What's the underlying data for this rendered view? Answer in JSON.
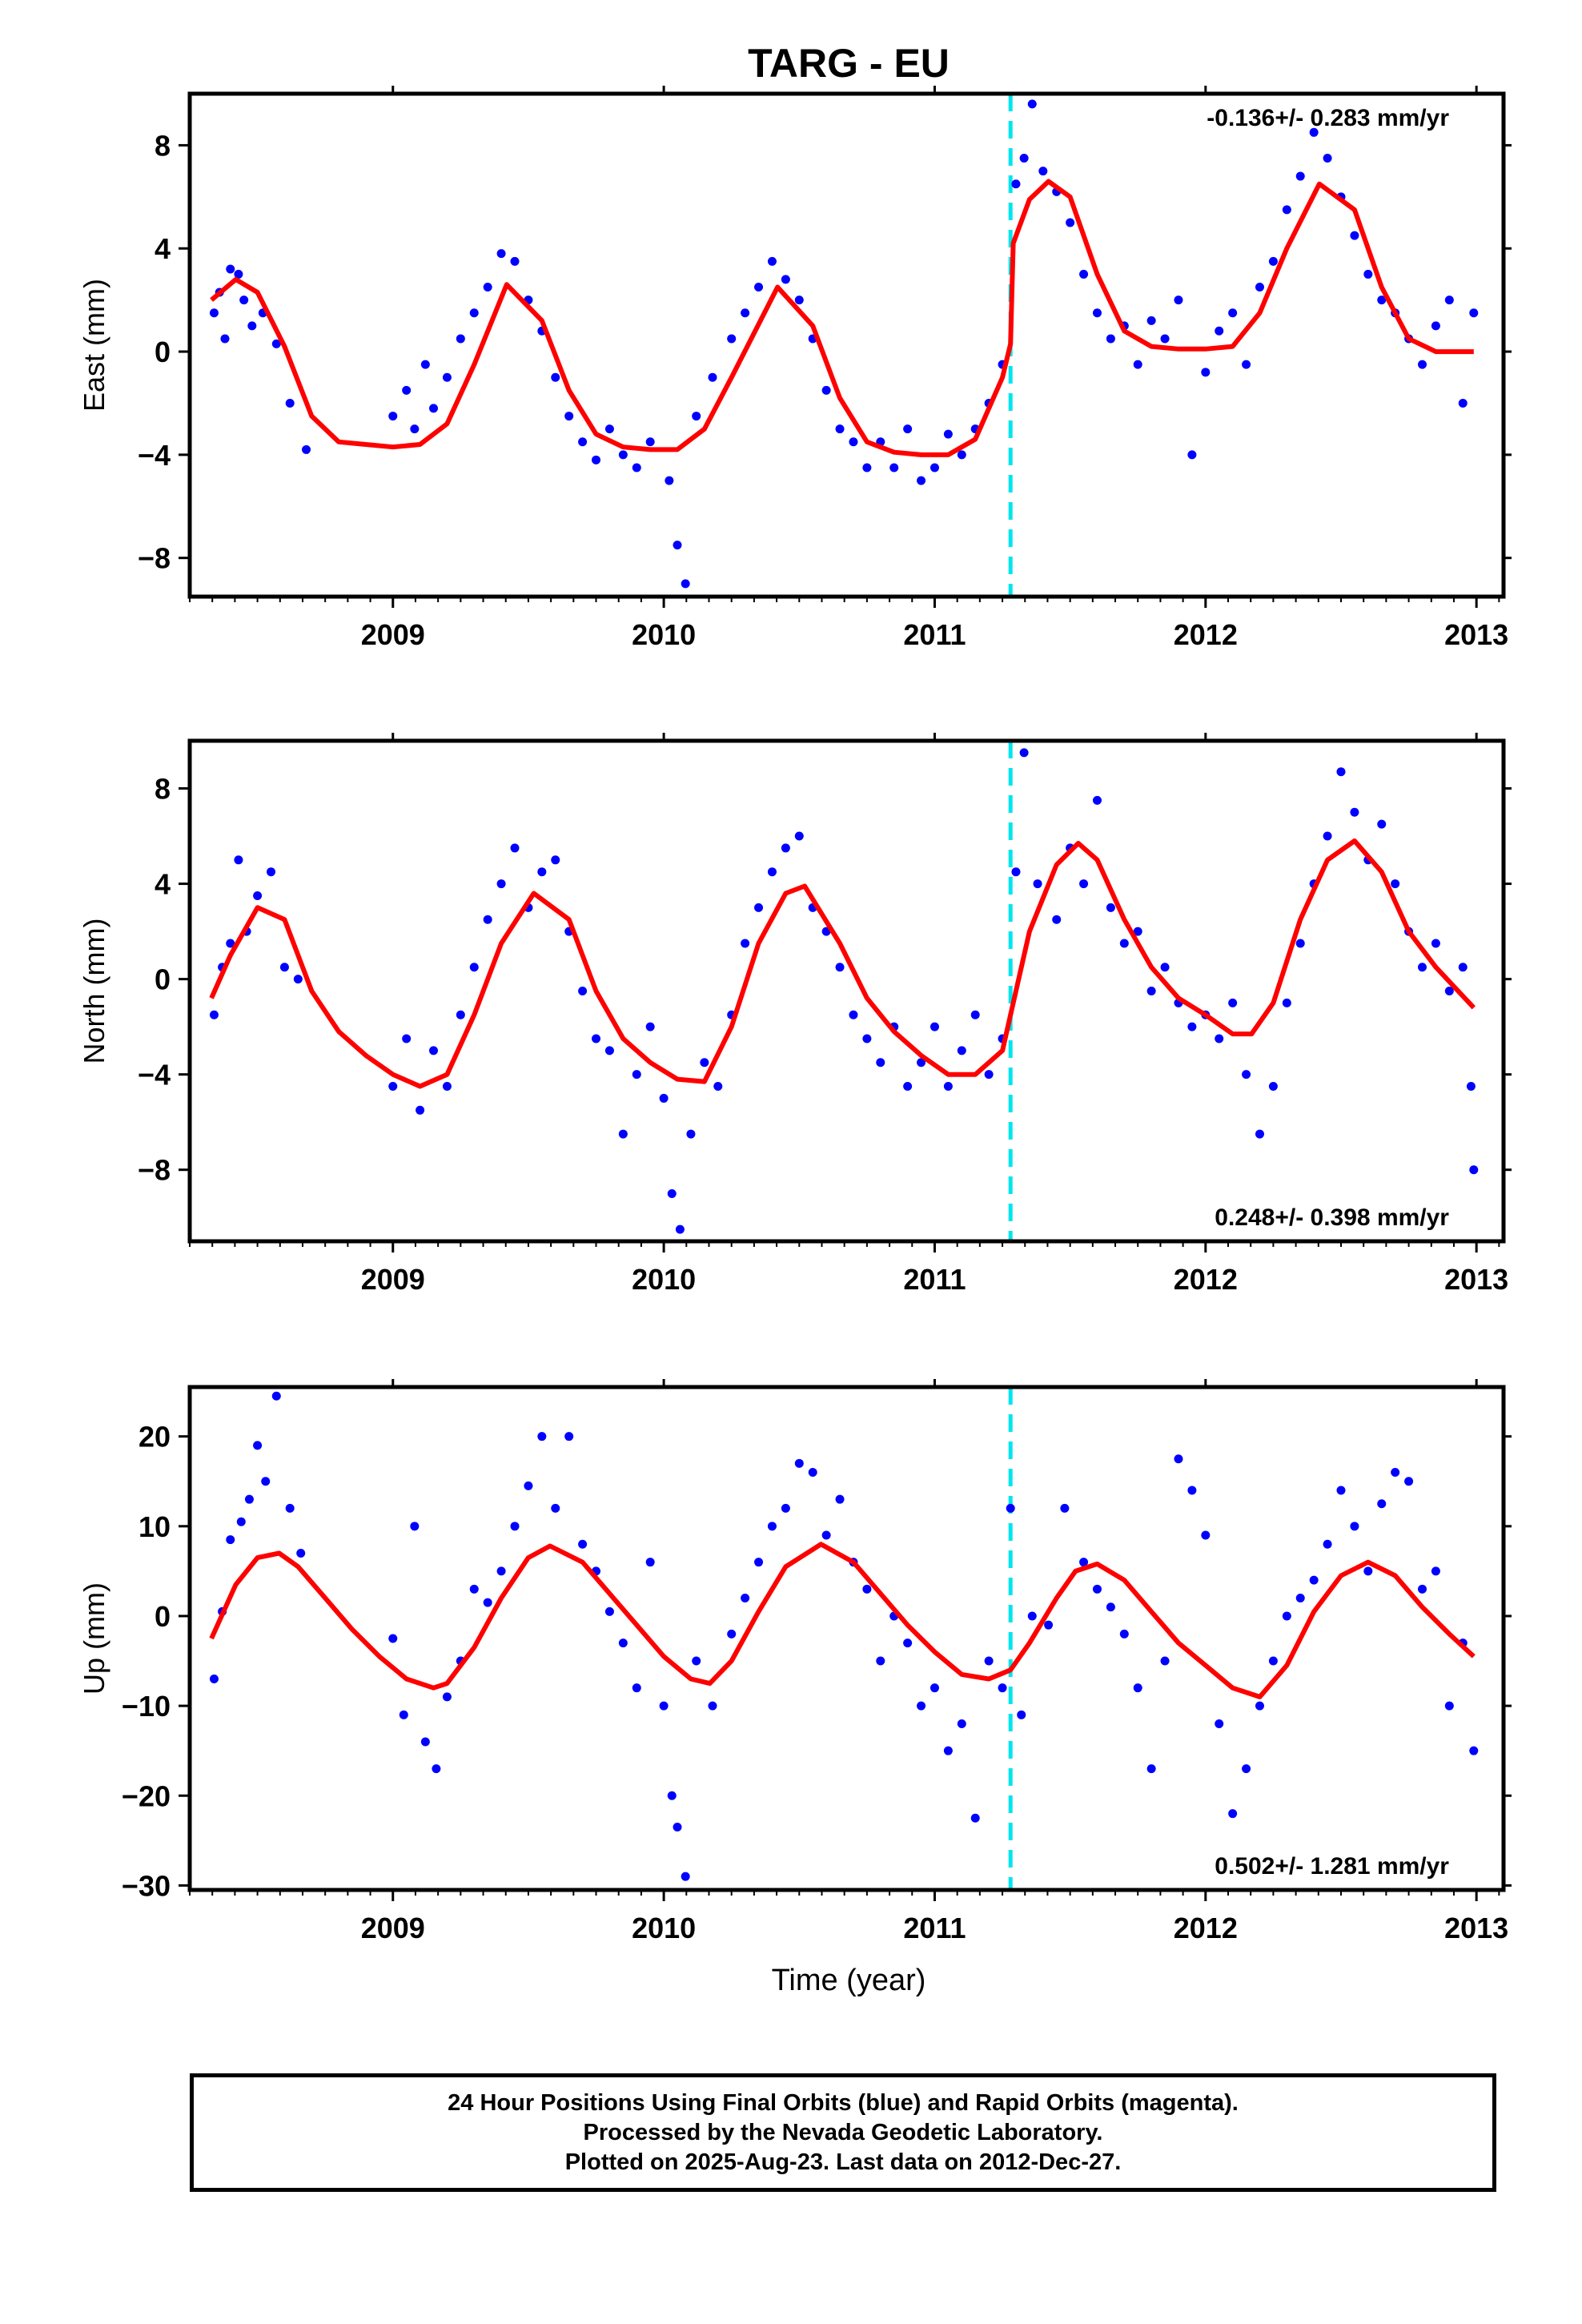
{
  "title": "TARG - EU",
  "colors": {
    "data": "#0000ff",
    "fit": "#ff0000",
    "event": "#00e5ee",
    "axis": "#000000"
  },
  "chart_data": [
    {
      "type": "scatter",
      "panel": "east",
      "ylabel": "East (mm)",
      "xlabel": "",
      "xlim": [
        2008.25,
        2013.1
      ],
      "ylim": [
        -9.5,
        10
      ],
      "x_ticks": [
        "2009",
        "2010",
        "2011",
        "2012",
        "2013"
      ],
      "y_ticks": [
        -8,
        -4,
        0,
        4,
        8
      ],
      "rate_label": "-0.136+/- 0.283 mm/yr",
      "rate_position": "top-right",
      "event_line_x": 2011.28,
      "fit_curve": {
        "name": "",
        "color": "#ff0000",
        "x": [
          2008.33,
          2008.42,
          2008.5,
          2008.6,
          2008.7,
          2008.8,
          2008.9,
          2009.0,
          2009.1,
          2009.2,
          2009.3,
          2009.42,
          2009.55,
          2009.65,
          2009.75,
          2009.85,
          2009.95,
          2010.05,
          2010.15,
          2010.25,
          2010.42,
          2010.55,
          2010.65,
          2010.75,
          2010.85,
          2010.95,
          2011.05,
          2011.15,
          2011.25,
          2011.28,
          2011.29,
          2011.35,
          2011.42,
          2011.5,
          2011.6,
          2011.7,
          2011.8,
          2011.9,
          2012.0,
          2012.1,
          2012.2,
          2012.3,
          2012.42,
          2012.55,
          2012.65,
          2012.75,
          2012.85,
          2012.99
        ],
        "y": [
          2.0,
          2.8,
          2.3,
          0.2,
          -2.5,
          -3.5,
          -3.6,
          -3.7,
          -3.6,
          -2.8,
          -0.5,
          2.6,
          1.2,
          -1.5,
          -3.2,
          -3.7,
          -3.8,
          -3.8,
          -3.0,
          -1.0,
          2.5,
          1.0,
          -1.8,
          -3.5,
          -3.9,
          -4.0,
          -4.0,
          -3.4,
          -1.0,
          0.3,
          4.2,
          5.9,
          6.6,
          6.0,
          3.0,
          0.8,
          0.2,
          0.1,
          0.1,
          0.2,
          1.5,
          4.0,
          6.5,
          5.5,
          2.5,
          0.5,
          0.0,
          0.0
        ]
      },
      "series": [
        {
          "name": "",
          "color": "#0000ff",
          "x": [
            2008.34,
            2008.36,
            2008.38,
            2008.4,
            2008.43,
            2008.45,
            2008.48,
            2008.52,
            2008.57,
            2008.62,
            2008.68,
            2009.0,
            2009.05,
            2009.08,
            2009.12,
            2009.15,
            2009.2,
            2009.25,
            2009.3,
            2009.35,
            2009.4,
            2009.45,
            2009.5,
            2009.55,
            2009.6,
            2009.65,
            2009.7,
            2009.75,
            2009.8,
            2009.85,
            2009.9,
            2009.95,
            2010.02,
            2010.05,
            2010.08,
            2010.12,
            2010.18,
            2010.25,
            2010.3,
            2010.35,
            2010.4,
            2010.45,
            2010.5,
            2010.55,
            2010.6,
            2010.65,
            2010.7,
            2010.75,
            2010.8,
            2010.85,
            2010.9,
            2010.95,
            2011.0,
            2011.05,
            2011.1,
            2011.15,
            2011.2,
            2011.25,
            2011.3,
            2011.33,
            2011.36,
            2011.4,
            2011.45,
            2011.5,
            2011.55,
            2011.6,
            2011.65,
            2011.7,
            2011.75,
            2011.8,
            2011.85,
            2011.9,
            2011.95,
            2012.0,
            2012.05,
            2012.1,
            2012.15,
            2012.2,
            2012.25,
            2012.3,
            2012.35,
            2012.4,
            2012.45,
            2012.5,
            2012.55,
            2012.6,
            2012.65,
            2012.7,
            2012.75,
            2012.8,
            2012.85,
            2012.9,
            2012.95,
            2012.99
          ],
          "y": [
            1.5,
            2.3,
            0.5,
            3.2,
            3.0,
            2.0,
            1.0,
            1.5,
            0.3,
            -2.0,
            -3.8,
            -2.5,
            -1.5,
            -3.0,
            -0.5,
            -2.2,
            -1.0,
            0.5,
            1.5,
            2.5,
            3.8,
            3.5,
            2.0,
            0.8,
            -1.0,
            -2.5,
            -3.5,
            -4.2,
            -3.0,
            -4.0,
            -4.5,
            -3.5,
            -5.0,
            -7.5,
            -9.0,
            -2.5,
            -1.0,
            0.5,
            1.5,
            2.5,
            3.5,
            2.8,
            2.0,
            0.5,
            -1.5,
            -3.0,
            -3.5,
            -4.5,
            -3.5,
            -4.5,
            -3.0,
            -5.0,
            -4.5,
            -3.2,
            -4.0,
            -3.0,
            -2.0,
            -0.5,
            6.5,
            7.5,
            9.6,
            7.0,
            6.2,
            5.0,
            3.0,
            1.5,
            0.5,
            1.0,
            -0.5,
            1.2,
            0.5,
            2.0,
            -4.0,
            -0.8,
            0.8,
            1.5,
            -0.5,
            2.5,
            3.5,
            5.5,
            6.8,
            8.5,
            7.5,
            6.0,
            4.5,
            3.0,
            2.0,
            1.5,
            0.5,
            -0.5,
            1.0,
            2.0,
            -2.0,
            1.5
          ]
        }
      ]
    },
    {
      "type": "scatter",
      "panel": "north",
      "ylabel": "North (mm)",
      "xlabel": "",
      "xlim": [
        2008.25,
        2013.1
      ],
      "ylim": [
        -11,
        10
      ],
      "x_ticks": [
        "2009",
        "2010",
        "2011",
        "2012",
        "2013"
      ],
      "y_ticks": [
        -8,
        -4,
        0,
        4,
        8
      ],
      "rate_label": "0.248+/- 0.398 mm/yr",
      "rate_position": "bottom-right",
      "event_line_x": 2011.28,
      "fit_curve": {
        "name": "",
        "color": "#ff0000",
        "x": [
          2008.33,
          2008.4,
          2008.5,
          2008.6,
          2008.7,
          2008.8,
          2008.9,
          2009.0,
          2009.1,
          2009.2,
          2009.3,
          2009.4,
          2009.52,
          2009.65,
          2009.75,
          2009.85,
          2009.95,
          2010.05,
          2010.15,
          2010.25,
          2010.35,
          2010.45,
          2010.52,
          2010.65,
          2010.75,
          2010.85,
          2010.95,
          2011.05,
          2011.15,
          2011.25,
          2011.28,
          2011.35,
          2011.45,
          2011.53,
          2011.6,
          2011.7,
          2011.8,
          2011.9,
          2012.0,
          2012.1,
          2012.17,
          2012.25,
          2012.35,
          2012.45,
          2012.55,
          2012.65,
          2012.75,
          2012.85,
          2012.99
        ],
        "y": [
          -0.8,
          1.0,
          3.0,
          2.5,
          -0.5,
          -2.2,
          -3.2,
          -4.0,
          -4.5,
          -4.0,
          -1.5,
          1.5,
          3.6,
          2.5,
          -0.5,
          -2.5,
          -3.5,
          -4.2,
          -4.3,
          -2.0,
          1.5,
          3.6,
          3.9,
          1.5,
          -0.8,
          -2.2,
          -3.2,
          -4.0,
          -4.0,
          -3.0,
          -1.5,
          2.0,
          4.8,
          5.7,
          5.0,
          2.5,
          0.5,
          -0.8,
          -1.5,
          -2.3,
          -2.3,
          -1.0,
          2.5,
          5.0,
          5.8,
          4.5,
          2.0,
          0.5,
          -1.2
        ]
      },
      "series": [
        {
          "name": "",
          "color": "#0000ff",
          "x": [
            2008.34,
            2008.37,
            2008.4,
            2008.43,
            2008.46,
            2008.5,
            2008.55,
            2008.6,
            2008.65,
            2009.0,
            2009.05,
            2009.1,
            2009.15,
            2009.2,
            2009.25,
            2009.3,
            2009.35,
            2009.4,
            2009.45,
            2009.5,
            2009.55,
            2009.6,
            2009.65,
            2009.7,
            2009.75,
            2009.8,
            2009.85,
            2009.9,
            2009.95,
            2010.0,
            2010.03,
            2010.06,
            2010.1,
            2010.15,
            2010.2,
            2010.25,
            2010.3,
            2010.35,
            2010.4,
            2010.45,
            2010.5,
            2010.55,
            2010.6,
            2010.65,
            2010.7,
            2010.75,
            2010.8,
            2010.85,
            2010.9,
            2010.95,
            2011.0,
            2011.05,
            2011.1,
            2011.15,
            2011.2,
            2011.25,
            2011.3,
            2011.33,
            2011.38,
            2011.45,
            2011.5,
            2011.55,
            2011.6,
            2011.65,
            2011.7,
            2011.75,
            2011.8,
            2011.85,
            2011.9,
            2011.95,
            2012.0,
            2012.05,
            2012.1,
            2012.15,
            2012.2,
            2012.25,
            2012.3,
            2012.35,
            2012.4,
            2012.45,
            2012.5,
            2012.55,
            2012.6,
            2012.65,
            2012.7,
            2012.75,
            2012.8,
            2012.85,
            2012.9,
            2012.95,
            2012.98,
            2012.99
          ],
          "y": [
            -1.5,
            0.5,
            1.5,
            5.0,
            2.0,
            3.5,
            4.5,
            0.5,
            0.0,
            -4.5,
            -2.5,
            -5.5,
            -3.0,
            -4.5,
            -1.5,
            0.5,
            2.5,
            4.0,
            5.5,
            3.0,
            4.5,
            5.0,
            2.0,
            -0.5,
            -2.5,
            -3.0,
            -6.5,
            -4.0,
            -2.0,
            -5.0,
            -9.0,
            -10.5,
            -6.5,
            -3.5,
            -4.5,
            -1.5,
            1.5,
            3.0,
            4.5,
            5.5,
            6.0,
            3.0,
            2.0,
            0.5,
            -1.5,
            -2.5,
            -3.5,
            -2.0,
            -4.5,
            -3.5,
            -2.0,
            -4.5,
            -3.0,
            -1.5,
            -4.0,
            -2.5,
            4.5,
            9.5,
            4.0,
            2.5,
            5.5,
            4.0,
            7.5,
            3.0,
            1.5,
            2.0,
            -0.5,
            0.5,
            -1.0,
            -2.0,
            -1.5,
            -2.5,
            -1.0,
            -4.0,
            -6.5,
            -4.5,
            -1.0,
            1.5,
            4.0,
            6.0,
            8.7,
            7.0,
            5.0,
            6.5,
            4.0,
            2.0,
            0.5,
            1.5,
            -0.5,
            0.5,
            -4.5,
            -8.0
          ]
        }
      ]
    },
    {
      "type": "scatter",
      "panel": "up",
      "ylabel": "Up (mm)",
      "xlabel": "Time (year)",
      "xlim": [
        2008.25,
        2013.1
      ],
      "ylim": [
        -30.5,
        25.5
      ],
      "x_ticks": [
        "2009",
        "2010",
        "2011",
        "2012",
        "2013"
      ],
      "y_ticks": [
        -30,
        -20,
        -10,
        0,
        10,
        20
      ],
      "rate_label": "0.502+/- 1.281 mm/yr",
      "rate_position": "bottom-right",
      "event_line_x": 2011.28,
      "fit_curve": {
        "name": "",
        "color": "#ff0000",
        "x": [
          2008.33,
          2008.42,
          2008.5,
          2008.58,
          2008.65,
          2008.75,
          2008.85,
          2008.95,
          2009.05,
          2009.15,
          2009.2,
          2009.3,
          2009.4,
          2009.5,
          2009.58,
          2009.7,
          2009.8,
          2009.9,
          2010.0,
          2010.1,
          2010.17,
          2010.25,
          2010.35,
          2010.45,
          2010.58,
          2010.7,
          2010.8,
          2010.9,
          2011.0,
          2011.1,
          2011.2,
          2011.28,
          2011.35,
          2011.45,
          2011.52,
          2011.6,
          2011.7,
          2011.8,
          2011.9,
          2012.0,
          2012.1,
          2012.2,
          2012.3,
          2012.4,
          2012.5,
          2012.6,
          2012.7,
          2012.8,
          2012.9,
          2012.99
        ],
        "y": [
          -2.5,
          3.5,
          6.5,
          7.0,
          5.5,
          2.0,
          -1.5,
          -4.5,
          -7.0,
          -8.0,
          -7.5,
          -3.5,
          2.0,
          6.5,
          7.8,
          6.0,
          2.5,
          -1.0,
          -4.5,
          -7.0,
          -7.5,
          -5.0,
          0.5,
          5.5,
          8.0,
          6.0,
          2.5,
          -1.0,
          -4.0,
          -6.5,
          -7.0,
          -6.0,
          -3.0,
          2.0,
          5.0,
          5.8,
          4.0,
          0.5,
          -3.0,
          -5.5,
          -8.0,
          -9.0,
          -5.5,
          0.5,
          4.5,
          6.0,
          4.5,
          1.0,
          -2.0,
          -4.5
        ]
      },
      "series": [
        {
          "name": "",
          "color": "#0000ff",
          "x": [
            2008.34,
            2008.37,
            2008.4,
            2008.44,
            2008.47,
            2008.5,
            2008.53,
            2008.57,
            2008.62,
            2008.66,
            2009.0,
            2009.04,
            2009.08,
            2009.12,
            2009.16,
            2009.2,
            2009.25,
            2009.3,
            2009.35,
            2009.4,
            2009.45,
            2009.5,
            2009.55,
            2009.6,
            2009.65,
            2009.7,
            2009.75,
            2009.8,
            2009.85,
            2009.9,
            2009.95,
            2010.0,
            2010.03,
            2010.05,
            2010.08,
            2010.12,
            2010.18,
            2010.25,
            2010.3,
            2010.35,
            2010.4,
            2010.45,
            2010.5,
            2010.55,
            2010.6,
            2010.65,
            2010.7,
            2010.75,
            2010.8,
            2010.85,
            2010.9,
            2010.95,
            2011.0,
            2011.05,
            2011.1,
            2011.15,
            2011.2,
            2011.25,
            2011.28,
            2011.32,
            2011.36,
            2011.42,
            2011.48,
            2011.55,
            2011.6,
            2011.65,
            2011.7,
            2011.75,
            2011.8,
            2011.85,
            2011.9,
            2011.95,
            2012.0,
            2012.05,
            2012.1,
            2012.15,
            2012.2,
            2012.25,
            2012.3,
            2012.35,
            2012.4,
            2012.45,
            2012.5,
            2012.55,
            2012.6,
            2012.65,
            2012.7,
            2012.75,
            2012.8,
            2012.85,
            2012.9,
            2012.95,
            2012.99
          ],
          "y": [
            -7.0,
            0.5,
            8.5,
            10.5,
            13.0,
            19.0,
            15.0,
            24.5,
            12.0,
            7.0,
            -2.5,
            -11.0,
            10.0,
            -14.0,
            -17.0,
            -9.0,
            -5.0,
            3.0,
            1.5,
            5.0,
            10.0,
            14.5,
            20.0,
            12.0,
            20.0,
            8.0,
            5.0,
            0.5,
            -3.0,
            -8.0,
            6.0,
            -10.0,
            -20.0,
            -23.5,
            -29.0,
            -5.0,
            -10.0,
            -2.0,
            2.0,
            6.0,
            10.0,
            12.0,
            17.0,
            16.0,
            9.0,
            13.0,
            6.0,
            3.0,
            -5.0,
            0.0,
            -3.0,
            -10.0,
            -8.0,
            -15.0,
            -12.0,
            -22.5,
            -5.0,
            -8.0,
            12.0,
            -11.0,
            0.0,
            -1.0,
            12.0,
            6.0,
            3.0,
            1.0,
            -2.0,
            -8.0,
            -17.0,
            -5.0,
            17.5,
            14.0,
            9.0,
            -12.0,
            -22.0,
            -17.0,
            -10.0,
            -5.0,
            0.0,
            2.0,
            4.0,
            8.0,
            14.0,
            10.0,
            5.0,
            12.5,
            16.0,
            15.0,
            3.0,
            5.0,
            -10.0,
            -3.0,
            -15.0
          ]
        }
      ]
    }
  ],
  "caption": {
    "line1": "24 Hour Positions Using Final Orbits (blue) and Rapid Orbits (magenta).",
    "line2": "Processed by the Nevada Geodetic Laboratory.",
    "line3": "Plotted on 2025-Aug-23. Last data on 2012-Dec-27."
  }
}
